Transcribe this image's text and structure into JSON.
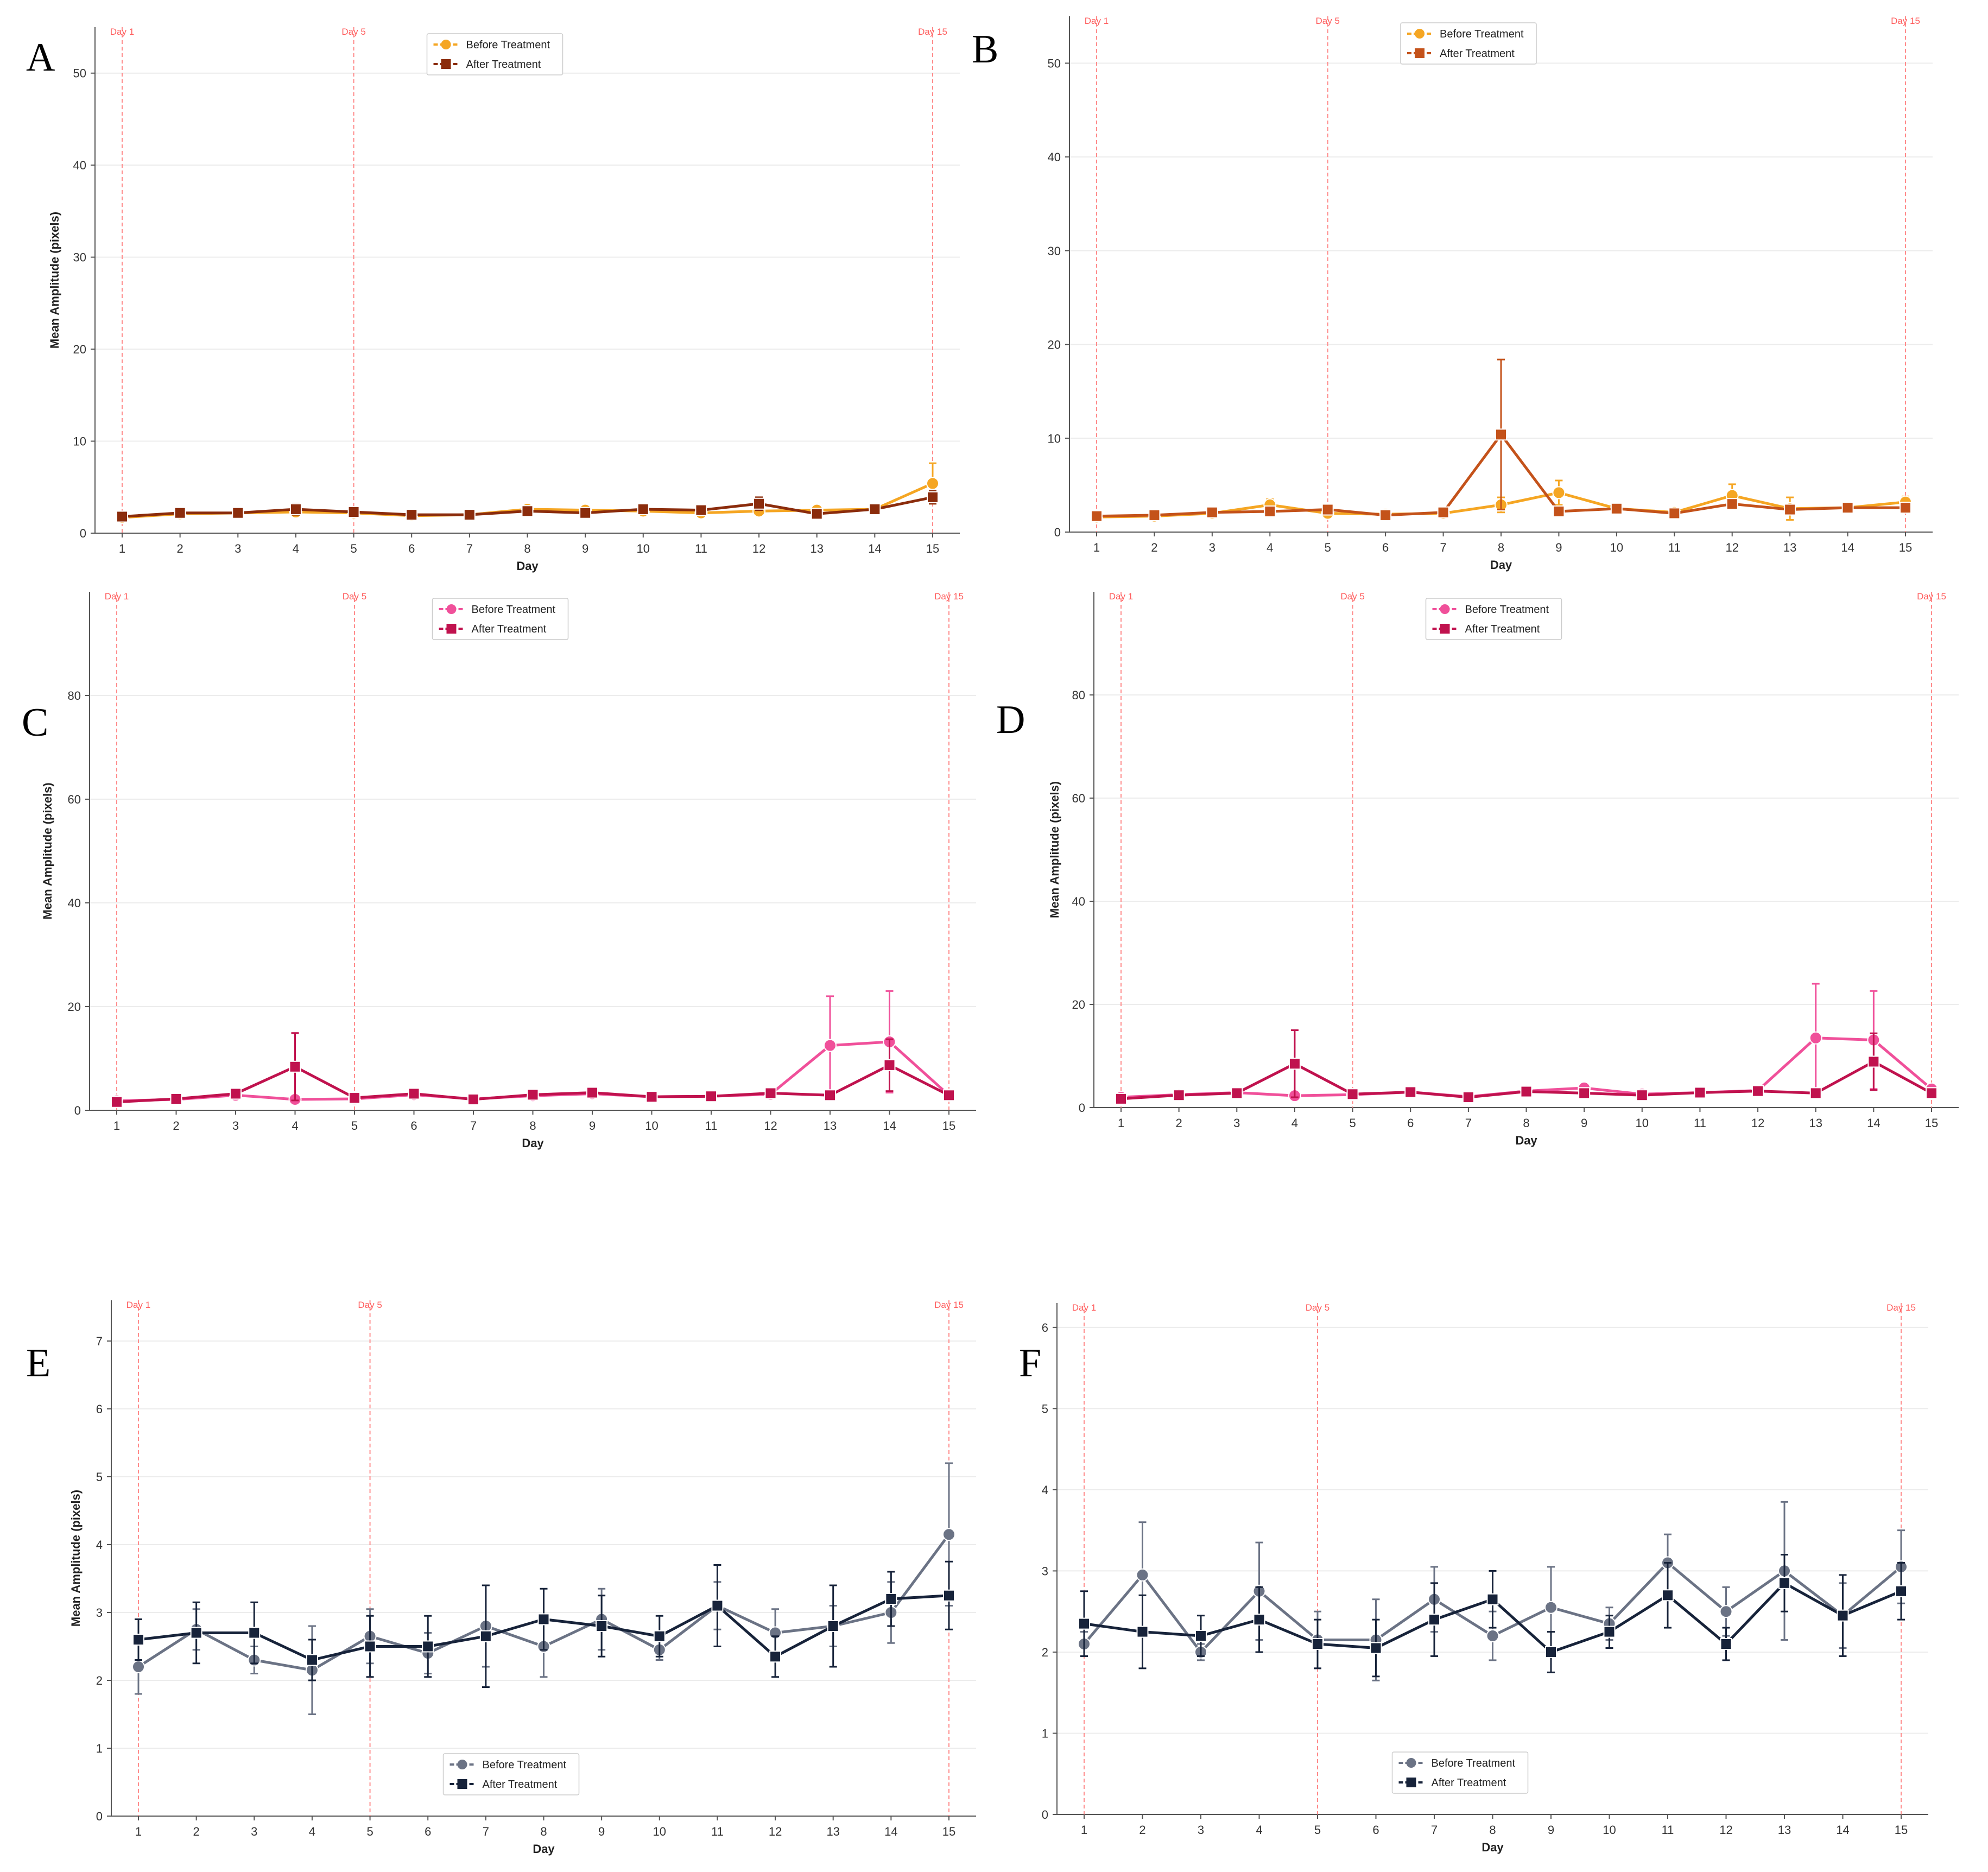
{
  "chart_data": [
    {
      "type": "line",
      "panel": "A",
      "xlabel": "Day",
      "ylabel": "Mean Amplitude (pixels)",
      "x": [
        1,
        2,
        3,
        4,
        5,
        6,
        7,
        8,
        9,
        10,
        11,
        12,
        13,
        14,
        15
      ],
      "ylim": [
        0,
        55
      ],
      "yticks": [
        0,
        10,
        20,
        30,
        40,
        50
      ],
      "grid": "horizontal",
      "legend_position": "top-center",
      "vlines": [
        {
          "x": 1,
          "label": "Day 1"
        },
        {
          "x": 5,
          "label": "Day 5"
        },
        {
          "x": 15,
          "label": "Day 15"
        }
      ],
      "series": [
        {
          "name": "Before Treatment",
          "color": "#f5a623",
          "marker": "circle",
          "values": [
            1.7,
            2.1,
            2.2,
            2.3,
            2.2,
            1.9,
            2.0,
            2.6,
            2.5,
            2.4,
            2.2,
            2.4,
            2.5,
            2.6,
            5.4
          ],
          "err": [
            0.2,
            0.2,
            0.3,
            0.4,
            0.3,
            0.2,
            0.2,
            0.4,
            0.3,
            0.3,
            0.3,
            0.3,
            0.4,
            0.3,
            2.2
          ]
        },
        {
          "name": "After Treatment",
          "color": "#8b2c0c",
          "marker": "square",
          "values": [
            1.8,
            2.2,
            2.2,
            2.6,
            2.3,
            2.0,
            2.0,
            2.4,
            2.2,
            2.6,
            2.5,
            3.2,
            2.1,
            2.6,
            3.9
          ],
          "err": [
            0.2,
            0.2,
            0.3,
            0.6,
            0.3,
            0.2,
            0.2,
            0.3,
            0.3,
            0.3,
            0.3,
            0.7,
            0.3,
            0.3,
            0.7
          ]
        }
      ]
    },
    {
      "type": "line",
      "panel": "B",
      "xlabel": "Day",
      "ylabel": "",
      "x": [
        1,
        2,
        3,
        4,
        5,
        6,
        7,
        8,
        9,
        10,
        11,
        12,
        13,
        14,
        15
      ],
      "ylim": [
        0,
        55
      ],
      "yticks": [
        0,
        10,
        20,
        30,
        40,
        50
      ],
      "grid": "horizontal",
      "legend_position": "top-center",
      "vlines": [
        {
          "x": 1,
          "label": "Day 1"
        },
        {
          "x": 5,
          "label": "Day 5"
        },
        {
          "x": 15,
          "label": "Day 15"
        }
      ],
      "series": [
        {
          "name": "Before Treatment",
          "color": "#f5a623",
          "marker": "circle",
          "values": [
            1.6,
            1.7,
            2.0,
            2.9,
            2.0,
            1.9,
            2.0,
            2.9,
            4.2,
            2.5,
            2.1,
            3.9,
            2.5,
            2.6,
            3.2
          ],
          "err": [
            0.2,
            0.2,
            0.2,
            0.6,
            0.3,
            0.2,
            0.2,
            0.8,
            1.3,
            0.3,
            0.2,
            1.2,
            1.2,
            0.3,
            0.6
          ]
        },
        {
          "name": "After Treatment",
          "color": "#c4521a",
          "marker": "square",
          "values": [
            1.7,
            1.8,
            2.1,
            2.2,
            2.4,
            1.8,
            2.1,
            10.4,
            2.2,
            2.5,
            2.0,
            3.0,
            2.4,
            2.6,
            2.6
          ],
          "err": [
            0.2,
            0.2,
            0.2,
            0.3,
            0.3,
            0.2,
            0.2,
            8.0,
            0.3,
            0.3,
            0.2,
            0.4,
            0.4,
            0.3,
            0.4
          ]
        }
      ]
    },
    {
      "type": "line",
      "panel": "C",
      "xlabel": "Day",
      "ylabel": "Mean Amplitude (pixels)",
      "x": [
        1,
        2,
        3,
        4,
        5,
        6,
        7,
        8,
        9,
        10,
        11,
        12,
        13,
        14,
        15
      ],
      "ylim": [
        0,
        100
      ],
      "yticks": [
        0,
        20,
        40,
        60,
        80
      ],
      "grid": "horizontal",
      "legend_position": "top-center",
      "vlines": [
        {
          "x": 1,
          "label": "Day 1"
        },
        {
          "x": 5,
          "label": "Day 5"
        },
        {
          "x": 15,
          "label": "Day 15"
        }
      ],
      "series": [
        {
          "name": "Before Treatment",
          "color": "#f0509a",
          "marker": "circle",
          "values": [
            1.8,
            2.1,
            2.9,
            2.1,
            2.2,
            3.0,
            2.2,
            2.8,
            3.2,
            2.6,
            2.7,
            3.1,
            12.5,
            13.2,
            2.9
          ],
          "err": [
            0.3,
            0.3,
            0.4,
            0.4,
            0.4,
            0.5,
            0.4,
            0.4,
            0.5,
            0.4,
            0.4,
            0.5,
            9.5,
            9.8,
            0.5
          ]
        },
        {
          "name": "After Treatment",
          "color": "#c0124e",
          "marker": "square",
          "values": [
            1.6,
            2.2,
            3.2,
            8.4,
            2.4,
            3.2,
            2.1,
            3.0,
            3.4,
            2.6,
            2.7,
            3.3,
            2.9,
            8.7,
            2.9
          ],
          "err": [
            0.3,
            0.3,
            0.4,
            6.5,
            0.4,
            0.5,
            0.4,
            0.4,
            0.5,
            0.4,
            0.4,
            0.5,
            0.5,
            5.0,
            0.5
          ]
        }
      ]
    },
    {
      "type": "line",
      "panel": "D",
      "xlabel": "Day",
      "ylabel": "Mean Amplitude (pixels)",
      "x": [
        1,
        2,
        3,
        4,
        5,
        6,
        7,
        8,
        9,
        10,
        11,
        12,
        13,
        14,
        15
      ],
      "ylim": [
        0,
        100
      ],
      "yticks": [
        0,
        20,
        40,
        60,
        80
      ],
      "grid": "horizontal",
      "legend_position": "top-center",
      "vlines": [
        {
          "x": 1,
          "label": "Day 1"
        },
        {
          "x": 5,
          "label": "Day 5"
        },
        {
          "x": 15,
          "label": "Day 15"
        }
      ],
      "series": [
        {
          "name": "Before Treatment",
          "color": "#f0509a",
          "marker": "circle",
          "values": [
            2.0,
            2.5,
            2.9,
            2.3,
            2.5,
            3.0,
            2.1,
            3.2,
            3.8,
            2.6,
            2.9,
            3.3,
            13.5,
            13.1,
            3.6
          ],
          "err": [
            0.3,
            0.3,
            0.4,
            0.4,
            0.4,
            0.5,
            0.4,
            0.4,
            0.6,
            0.4,
            0.4,
            0.5,
            10.5,
            9.5,
            0.5
          ]
        },
        {
          "name": "After Treatment",
          "color": "#c0124e",
          "marker": "square",
          "values": [
            1.7,
            2.4,
            2.8,
            8.5,
            2.6,
            3.0,
            2.0,
            3.1,
            2.8,
            2.4,
            2.9,
            3.2,
            2.8,
            8.9,
            2.8
          ],
          "err": [
            0.3,
            0.3,
            0.4,
            6.5,
            0.4,
            0.5,
            0.4,
            0.4,
            0.5,
            0.4,
            0.4,
            0.5,
            0.5,
            5.5,
            0.5
          ]
        }
      ]
    },
    {
      "type": "line",
      "panel": "E",
      "xlabel": "Day",
      "ylabel": "Mean Amplitude (pixels)",
      "x": [
        1,
        2,
        3,
        4,
        5,
        6,
        7,
        8,
        9,
        10,
        11,
        12,
        13,
        14,
        15
      ],
      "ylim": [
        0,
        7.6
      ],
      "yticks": [
        0,
        1,
        2,
        3,
        4,
        5,
        6,
        7
      ],
      "grid": "horizontal",
      "legend_position": "bottom-center",
      "vlines": [
        {
          "x": 1,
          "label": "Day 1"
        },
        {
          "x": 5,
          "label": "Day 5"
        },
        {
          "x": 15,
          "label": "Day 15"
        }
      ],
      "series": [
        {
          "name": "Before Treatment",
          "color": "#6b7385",
          "marker": "circle",
          "values": [
            2.2,
            2.75,
            2.3,
            2.15,
            2.65,
            2.4,
            2.8,
            2.5,
            2.9,
            2.45,
            3.1,
            2.7,
            2.8,
            3.0,
            4.15
          ],
          "err": [
            0.4,
            0.3,
            0.2,
            0.65,
            0.4,
            0.3,
            0.6,
            0.45,
            0.45,
            0.15,
            0.35,
            0.35,
            0.3,
            0.45,
            1.05
          ]
        },
        {
          "name": "After Treatment",
          "color": "#17233a",
          "marker": "square",
          "values": [
            2.6,
            2.7,
            2.7,
            2.3,
            2.5,
            2.5,
            2.65,
            2.9,
            2.8,
            2.65,
            3.1,
            2.35,
            2.8,
            3.2,
            3.25
          ],
          "err": [
            0.3,
            0.45,
            0.45,
            0.3,
            0.45,
            0.45,
            0.75,
            0.45,
            0.45,
            0.3,
            0.6,
            0.3,
            0.6,
            0.4,
            0.5
          ]
        }
      ]
    },
    {
      "type": "line",
      "panel": "F",
      "xlabel": "Day",
      "ylabel": "",
      "x": [
        1,
        2,
        3,
        4,
        5,
        6,
        7,
        8,
        9,
        10,
        11,
        12,
        13,
        14,
        15
      ],
      "ylim": [
        0,
        6.3
      ],
      "yticks": [
        0,
        1,
        2,
        3,
        4,
        5,
        6
      ],
      "grid": "horizontal",
      "legend_position": "bottom-center",
      "vlines": [
        {
          "x": 1,
          "label": "Day 1"
        },
        {
          "x": 5,
          "label": "Day 5"
        },
        {
          "x": 15,
          "label": "Day 15"
        }
      ],
      "series": [
        {
          "name": "Before Treatment",
          "color": "#6b7385",
          "marker": "circle",
          "values": [
            2.1,
            2.95,
            2.0,
            2.75,
            2.15,
            2.15,
            2.65,
            2.2,
            2.55,
            2.35,
            3.1,
            2.5,
            3.0,
            2.45,
            3.05
          ],
          "err": [
            0.15,
            0.65,
            0.1,
            0.6,
            0.35,
            0.5,
            0.4,
            0.3,
            0.5,
            0.2,
            0.35,
            0.3,
            0.85,
            0.4,
            0.45
          ]
        },
        {
          "name": "After Treatment",
          "color": "#17233a",
          "marker": "square",
          "values": [
            2.35,
            2.25,
            2.2,
            2.4,
            2.1,
            2.05,
            2.4,
            2.65,
            2.0,
            2.25,
            2.7,
            2.1,
            2.85,
            2.45,
            2.75
          ],
          "err": [
            0.4,
            0.45,
            0.25,
            0.4,
            0.3,
            0.35,
            0.45,
            0.35,
            0.25,
            0.2,
            0.4,
            0.2,
            0.35,
            0.5,
            0.35
          ]
        }
      ]
    }
  ]
}
